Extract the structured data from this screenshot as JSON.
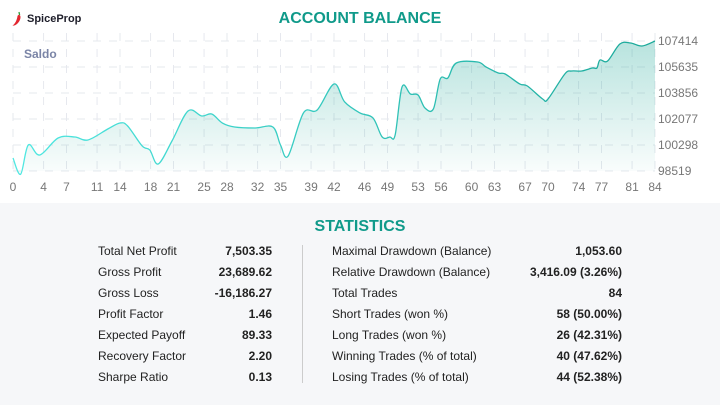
{
  "brand": {
    "name": "SpiceProp",
    "icon": "chili-pepper-icon",
    "icon_color": "#e3262f"
  },
  "colors": {
    "accent": "#109a8a",
    "line_start": "#4fe8e2",
    "line_end": "#1aa899"
  },
  "chart_data": {
    "type": "area",
    "title": "ACCOUNT BALANCE",
    "series_label": "Saldo",
    "xlabel": "",
    "ylabel": "",
    "xlim": [
      0,
      84
    ],
    "ylim": [
      98519,
      107414
    ],
    "grid": true,
    "x_ticks": [
      "0",
      "4",
      "7",
      "11",
      "14",
      "18",
      "21",
      "25",
      "28",
      "32",
      "35",
      "39",
      "42",
      "46",
      "49",
      "53",
      "56",
      "60",
      "63",
      "67",
      "70",
      "74",
      "77",
      "81",
      "84"
    ],
    "y_ticks": [
      "98519",
      "100298",
      "102077",
      "103856",
      "105635",
      "107414"
    ],
    "y_axis_position": "right",
    "points": [
      [
        0,
        99409
      ],
      [
        1,
        98300
      ],
      [
        2,
        100298
      ],
      [
        3.5,
        99614
      ],
      [
        5.9,
        100777
      ],
      [
        8.1,
        100846
      ],
      [
        9.8,
        100640
      ],
      [
        12.4,
        101393
      ],
      [
        14,
        101803
      ],
      [
        15,
        101598
      ],
      [
        16.9,
        100230
      ],
      [
        17.9,
        99956
      ],
      [
        19,
        98998
      ],
      [
        20.8,
        100572
      ],
      [
        22.9,
        102625
      ],
      [
        24.7,
        102283
      ],
      [
        26,
        102420
      ],
      [
        27.4,
        101803
      ],
      [
        29,
        101530
      ],
      [
        31.7,
        101461
      ],
      [
        34,
        101530
      ],
      [
        35,
        100298
      ],
      [
        36,
        99546
      ],
      [
        38,
        102488
      ],
      [
        39.8,
        102694
      ],
      [
        42,
        104473
      ],
      [
        43.4,
        103241
      ],
      [
        45.4,
        102488
      ],
      [
        47.1,
        102146
      ],
      [
        48.3,
        100846
      ],
      [
        49.3,
        100846
      ],
      [
        50,
        100982
      ],
      [
        50.9,
        104267
      ],
      [
        52,
        103788
      ],
      [
        53,
        103720
      ],
      [
        53.9,
        102830
      ],
      [
        55,
        102762
      ],
      [
        55.9,
        104815
      ],
      [
        56.9,
        104883
      ],
      [
        58,
        105909
      ],
      [
        60.8,
        105977
      ],
      [
        61.9,
        105635
      ],
      [
        63.5,
        105224
      ],
      [
        64.4,
        105156
      ],
      [
        66.3,
        104473
      ],
      [
        67.3,
        104335
      ],
      [
        69.3,
        103446
      ],
      [
        70,
        103446
      ],
      [
        72.2,
        105156
      ],
      [
        73.1,
        105361
      ],
      [
        74.4,
        105361
      ],
      [
        75.8,
        105566
      ],
      [
        76.4,
        105566
      ],
      [
        76.8,
        106114
      ],
      [
        77.8,
        106045
      ],
      [
        79.4,
        107209
      ],
      [
        80.8,
        107277
      ],
      [
        82.3,
        107072
      ],
      [
        84,
        107414
      ]
    ]
  },
  "statistics": {
    "title": "STATISTICS",
    "left": [
      {
        "label": "Total Net Profit",
        "value": "7,503.35"
      },
      {
        "label": "Gross Profit",
        "value": "23,689.62"
      },
      {
        "label": "Gross Loss",
        "value": "-16,186.27"
      },
      {
        "label": "Profit Factor",
        "value": "1.46"
      },
      {
        "label": "Expected Payoff",
        "value": "89.33"
      },
      {
        "label": "Recovery Factor",
        "value": "2.20"
      },
      {
        "label": "Sharpe Ratio",
        "value": "0.13"
      }
    ],
    "right": [
      {
        "label": "Maximal Drawdown (Balance)",
        "value": "1,053.60"
      },
      {
        "label": "Relative Drawdown (Balance)",
        "value": "3,416.09 (3.26%)"
      },
      {
        "label": "Total Trades",
        "value": "84"
      },
      {
        "label": "Short Trades (won %)",
        "value": "58 (50.00%)"
      },
      {
        "label": "Long Trades (won %)",
        "value": "26 (42.31%)"
      },
      {
        "label": "Winning Trades (% of total)",
        "value": "40 (47.62%)"
      },
      {
        "label": "Losing Trades (% of total)",
        "value": "44 (52.38%)"
      }
    ]
  }
}
